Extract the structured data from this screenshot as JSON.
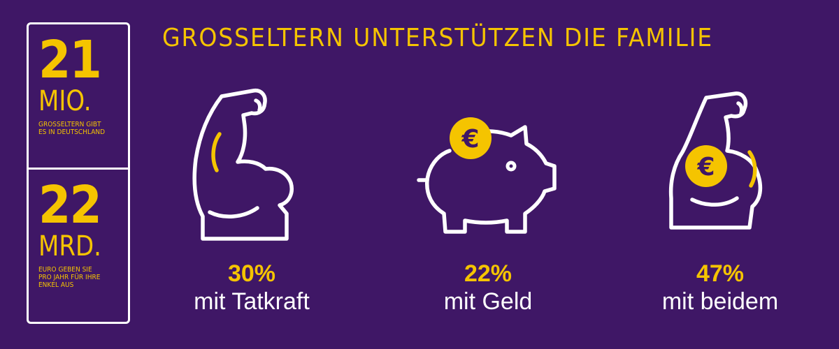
{
  "title": "GROSSELTERN UNTERSTÜTZEN DIE FAMILIE",
  "sidebar": {
    "stat1": {
      "number": "21",
      "unit": "MIO.",
      "note": "GROSSELTERN GIBT\nES IN DEUTSCHLAND"
    },
    "stat2": {
      "number": "22",
      "unit": "MRD.",
      "note": "EURO GEBEN SIE\nPRO JAHR FÜR IHRE\nENKEL AUS"
    }
  },
  "items": [
    {
      "percent": "30%",
      "label": "mit Tatkraft",
      "icon": "flexed-arm-icon"
    },
    {
      "percent": "22%",
      "label": "mit Geld",
      "icon": "piggy-bank-icon"
    },
    {
      "percent": "47%",
      "label": "mit beidem",
      "icon": "flexed-arm-euro-icon"
    }
  ],
  "icons": {
    "euro_symbol": "€"
  },
  "colors": {
    "background": "#3f1766",
    "accent": "#f5c400",
    "text": "#ffffff"
  }
}
